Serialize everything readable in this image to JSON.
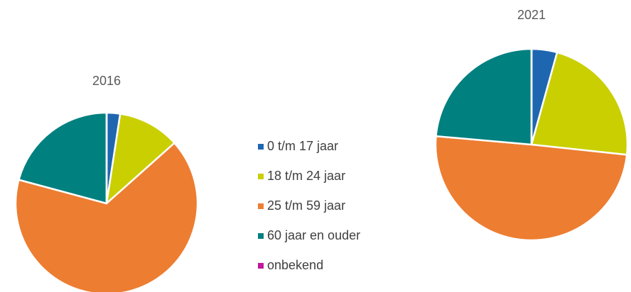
{
  "chart_data": [
    {
      "type": "pie",
      "title": "2016",
      "categories": [
        "0 t/m 17 jaar",
        "18 t/m 24 jaar",
        "25 t/m 59 jaar",
        "60 jaar en ouder",
        "onbekend"
      ],
      "values": [
        2.4,
        11,
        65.8,
        20.8,
        0
      ],
      "colors": [
        "#1f66b0",
        "#c9cf00",
        "#ed7d31",
        "#00807f",
        "#c0189a"
      ]
    },
    {
      "type": "pie",
      "title": "2021",
      "categories": [
        "0 t/m 17 jaar",
        "18 t/m 24 jaar",
        "25 t/m 59 jaar",
        "60 jaar en ouder",
        "onbekend"
      ],
      "values": [
        4.3,
        22.4,
        49.7,
        23.6,
        0
      ],
      "colors": [
        "#1f66b0",
        "#c9cf00",
        "#ed7d31",
        "#00807f",
        "#c0189a"
      ]
    }
  ]
}
